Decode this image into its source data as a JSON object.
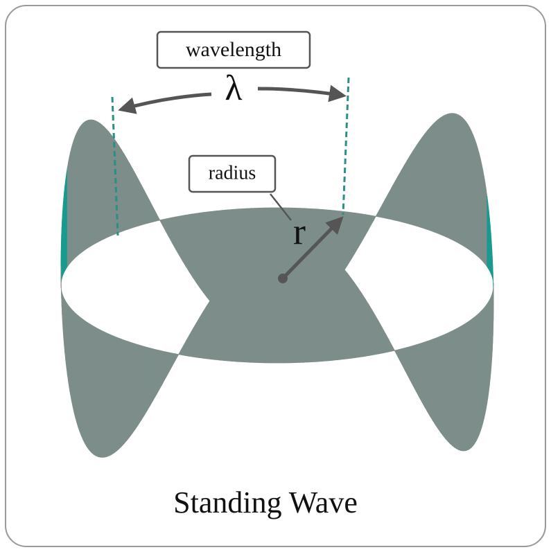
{
  "labels": {
    "wavelength": "wavelength",
    "lambda": "λ",
    "radius": "radius",
    "r": "r"
  },
  "caption": "Standing Wave"
}
